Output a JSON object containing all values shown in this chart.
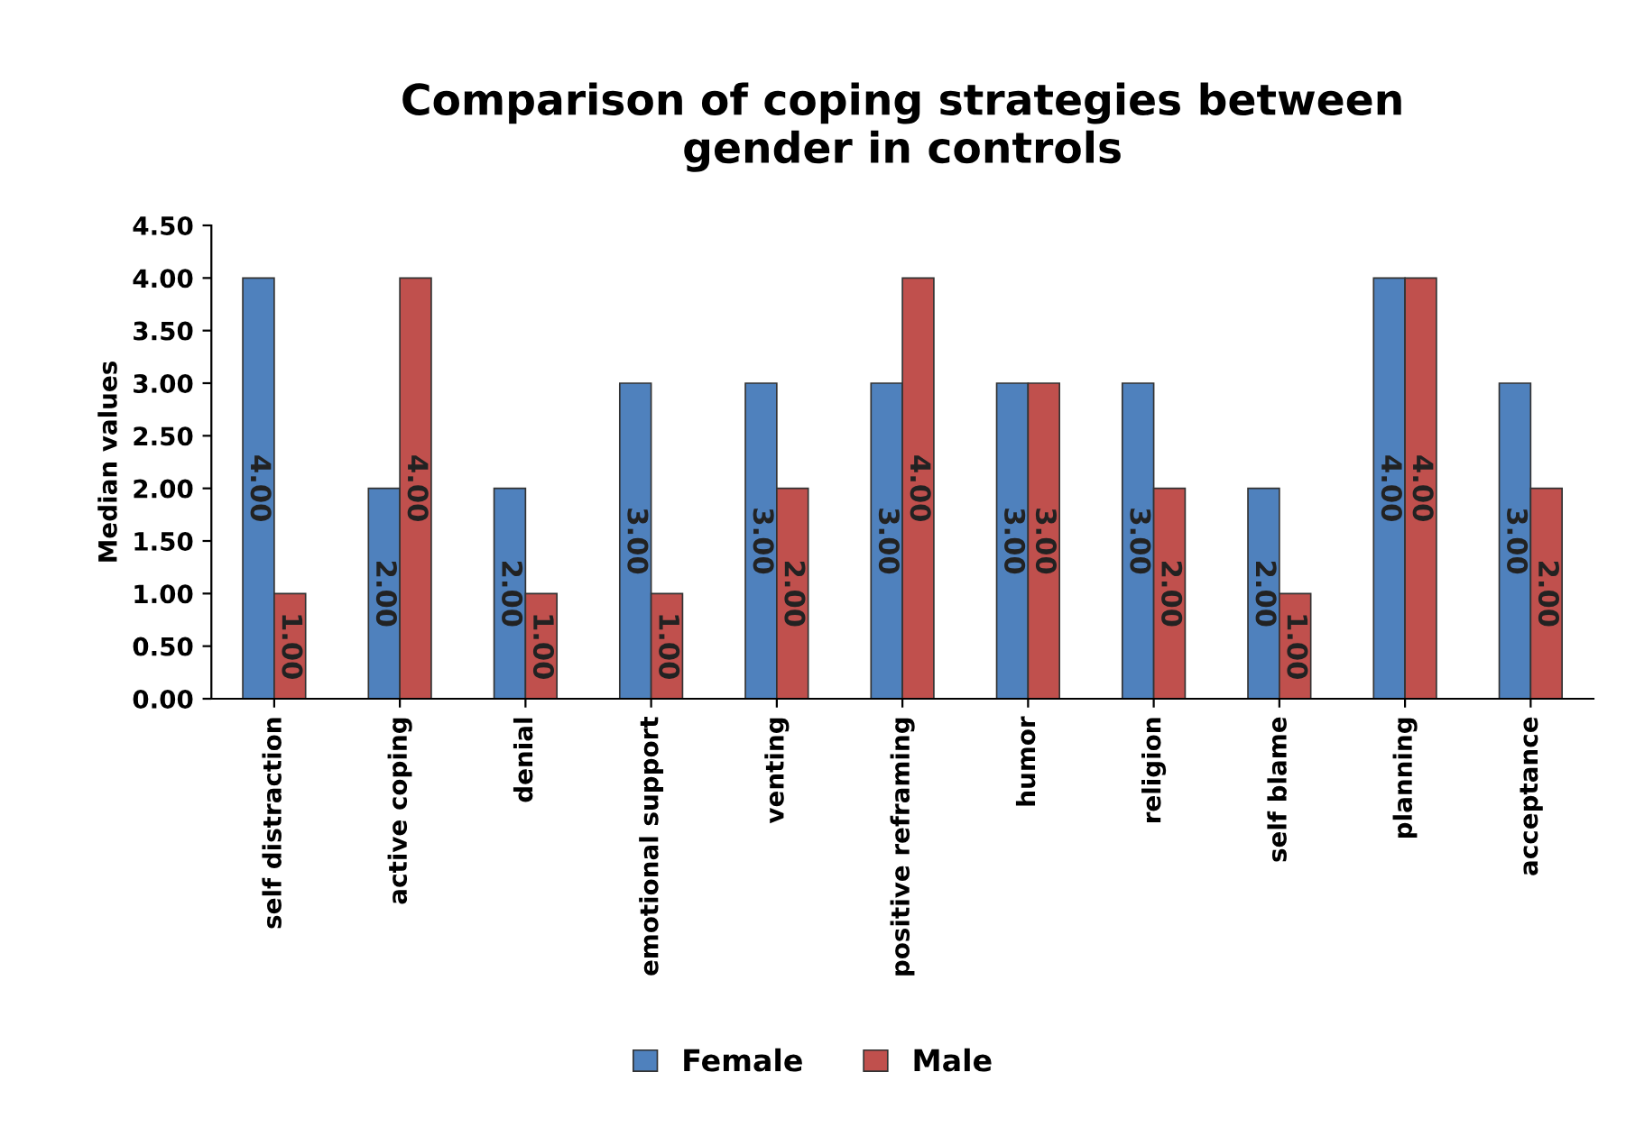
{
  "chart_data": {
    "type": "bar",
    "title": "Comparison of coping strategies between\ngender in controls",
    "ylabel": "Median values",
    "categories": [
      "self distraction",
      "active coping",
      "denial",
      "emotional support",
      "venting",
      "positive reframing",
      "humor",
      "religion",
      "self blame",
      "planning",
      "acceptance"
    ],
    "series": [
      {
        "name": "Female",
        "color": "#4f81bd",
        "values": [
          4,
          2,
          2,
          3,
          3,
          3,
          3,
          3,
          2,
          4,
          3
        ],
        "value_labels": [
          "4.00",
          "2.00",
          "2.00",
          "3.00",
          "3.00",
          "3.00",
          "3.00",
          "3.00",
          "2.00",
          "4.00",
          "3.00"
        ]
      },
      {
        "name": "Male",
        "color": "#c0504d",
        "values": [
          1,
          4,
          1,
          1,
          2,
          4,
          3,
          2,
          1,
          4,
          2
        ],
        "value_labels": [
          "1.00",
          "4.00",
          "1.00",
          "1.00",
          "2.00",
          "4.00",
          "3.00",
          "2.00",
          "1.00",
          "4.00",
          "2.00"
        ]
      }
    ],
    "ylim": [
      0,
      4.5
    ],
    "yticks": [
      {
        "value": 0,
        "label": "0.00"
      },
      {
        "value": 0.5,
        "label": "0.50"
      },
      {
        "value": 1,
        "label": "1.00"
      },
      {
        "value": 1.5,
        "label": "1.50"
      },
      {
        "value": 2,
        "label": "2.00"
      },
      {
        "value": 2.5,
        "label": "2.50"
      },
      {
        "value": 3,
        "label": "3.00"
      },
      {
        "value": 3.5,
        "label": "3.50"
      },
      {
        "value": 4,
        "label": "4.00"
      },
      {
        "value": 4.5,
        "label": "4.50"
      }
    ],
    "grid": false,
    "legend": "bottom"
  }
}
